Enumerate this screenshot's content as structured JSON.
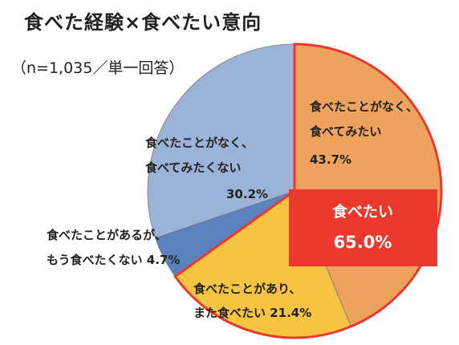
{
  "title": "食べた経験×食べたい意向",
  "subtitle": "（n=1,035／単一回答）",
  "colors": {
    "orange": "#EDA25E",
    "light_blue": "#9BB3D6",
    "dark_blue": "#5B82BE",
    "yellow": "#F6C342",
    "highlight_red": "#E8392C",
    "white": "#FFFFFF"
  },
  "chart_data": {
    "type": "pie",
    "title": "食べた経験×食べたい意向",
    "subtitle": "（n=1,035／単一回答）",
    "slices": [
      {
        "label_lines": [
          "食べたことがなく、",
          "食べてみたい"
        ],
        "value": 43.7,
        "value_label": "43.7%"
      },
      {
        "label_lines": [
          "食べたことがあり、",
          "また食べたい 21.4%"
        ],
        "value": 21.4,
        "value_label": ""
      },
      {
        "label_lines": [
          "食べたことがあるが、",
          "もう食べたくない 4.7%"
        ],
        "value": 4.7,
        "value_label": ""
      },
      {
        "label_lines": [
          "食べたことがなく、",
          "食べてみたくない"
        ],
        "value": 30.2,
        "value_label": "30.2%"
      }
    ],
    "highlight": {
      "label": "食べたい",
      "value": 65.0,
      "value_label": "65.0%"
    }
  }
}
